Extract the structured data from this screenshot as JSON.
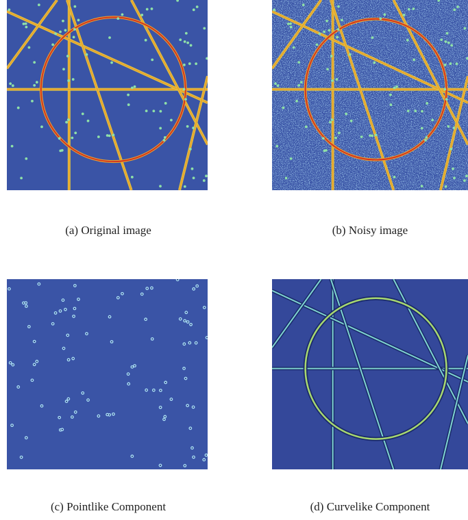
{
  "captions": [
    "(a) Original image",
    "(b) Noisy image",
    "(c) Pointlike Component",
    "(d) Curvelike Component"
  ]
}
